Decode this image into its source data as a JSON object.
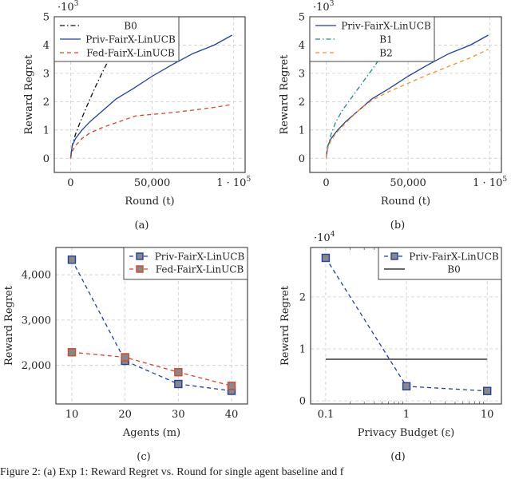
{
  "colors": {
    "blue": "#1f3fa8",
    "red": "#d9442a",
    "black": "#111111",
    "teal": "#1a8c8c",
    "orange": "#f39220",
    "marker_fill": "#888888"
  },
  "caption": "Figure 2: (a) Exp 1: Reward Regret vs. Round for single agent baseline and f",
  "chart_data": [
    {
      "id": "a",
      "type": "line",
      "sublabel": "(a)",
      "title": "",
      "xlabel": "Round (t)",
      "ylabel": "Reward Regret",
      "y_multiplier": "·10^3",
      "xlim": [
        -10000,
        107000
      ],
      "ylim": [
        -0.5,
        5
      ],
      "xticks": [
        0,
        50000,
        100000
      ],
      "xtick_labels": [
        "0",
        "50,000",
        "1 · 10^5"
      ],
      "yticks": [
        0,
        1,
        2,
        3,
        4,
        5
      ],
      "ytick_labels": [
        "0",
        "1",
        "2",
        "3",
        "4",
        "5"
      ],
      "grid": true,
      "legend_position": "top-left",
      "series": [
        {
          "name": "B0",
          "style": "dashdot",
          "color_key": "black",
          "x": [
            0,
            1000,
            3000,
            6000,
            10000,
            15000,
            20000,
            24000,
            30000
          ],
          "y": [
            0,
            0.45,
            0.85,
            1.3,
            1.85,
            2.5,
            3.1,
            3.55,
            4.2
          ]
        },
        {
          "name": "Priv-FairX-LinUCB",
          "style": "solid",
          "color_key": "blue",
          "x": [
            0,
            1000,
            3000,
            7000,
            12000,
            20000,
            28000,
            38000,
            50000,
            62000,
            75000,
            88000,
            99000
          ],
          "y": [
            0,
            0.45,
            0.7,
            1.0,
            1.3,
            1.7,
            2.1,
            2.45,
            2.9,
            3.3,
            3.7,
            4.0,
            4.35
          ]
        },
        {
          "name": "Fed-FairX-LinUCB",
          "style": "dashed",
          "color_key": "red",
          "x": [
            0,
            1000,
            3000,
            7000,
            12000,
            20000,
            30000,
            40000,
            50000,
            60000,
            75000,
            88000,
            99000
          ],
          "y": [
            0,
            0.25,
            0.45,
            0.7,
            0.9,
            1.1,
            1.3,
            1.5,
            1.55,
            1.6,
            1.7,
            1.8,
            1.9
          ]
        }
      ]
    },
    {
      "id": "b",
      "type": "line",
      "sublabel": "(b)",
      "title": "",
      "xlabel": "Round (t)",
      "ylabel": "Reward Regret",
      "y_multiplier": "·10^3",
      "xlim": [
        -10000,
        107000
      ],
      "ylim": [
        -0.5,
        5
      ],
      "xticks": [
        0,
        50000,
        100000
      ],
      "xtick_labels": [
        "0",
        "50,000",
        "1 · 10^5"
      ],
      "yticks": [
        0,
        1,
        2,
        3,
        4,
        5
      ],
      "ytick_labels": [
        "0",
        "1",
        "2",
        "3",
        "4",
        "5"
      ],
      "grid": true,
      "legend_position": "top-left",
      "series": [
        {
          "name": "Priv-FairX-LinUCB",
          "style": "solid",
          "color_key": "blue",
          "x": [
            0,
            1000,
            3000,
            7000,
            12000,
            20000,
            28000,
            38000,
            50000,
            62000,
            75000,
            88000,
            99000
          ],
          "y": [
            0,
            0.45,
            0.7,
            1.0,
            1.3,
            1.7,
            2.1,
            2.45,
            2.9,
            3.3,
            3.7,
            4.0,
            4.35
          ]
        },
        {
          "name": "B1",
          "style": "dashdot",
          "color_key": "teal",
          "x": [
            0,
            1000,
            3000,
            6000,
            10000,
            15000,
            20000,
            25000,
            30000,
            34000
          ],
          "y": [
            0,
            0.4,
            0.85,
            1.3,
            1.7,
            2.1,
            2.5,
            2.9,
            3.3,
            3.65
          ]
        },
        {
          "name": "B2",
          "style": "dashed",
          "color_key": "orange",
          "x": [
            0,
            1000,
            3000,
            7000,
            12000,
            20000,
            28000,
            38000,
            50000,
            62000,
            75000,
            88000,
            99000
          ],
          "y": [
            0,
            0.35,
            0.65,
            0.95,
            1.25,
            1.7,
            2.05,
            2.35,
            2.65,
            2.95,
            3.25,
            3.55,
            3.85
          ]
        }
      ]
    },
    {
      "id": "c",
      "type": "line",
      "sublabel": "(c)",
      "title": "",
      "xlabel": "Agents (m)",
      "ylabel": "Reward Regret",
      "xlim": [
        7,
        43
      ],
      "ylim": [
        1150,
        4600
      ],
      "xticks": [
        10,
        20,
        30,
        40
      ],
      "xtick_labels": [
        "10",
        "20",
        "30",
        "40"
      ],
      "yticks": [
        2000,
        3000,
        4000
      ],
      "ytick_labels": [
        "2,000",
        "3,000",
        "4,000"
      ],
      "grid": true,
      "legend_position": "top-right",
      "series": [
        {
          "name": "Priv-FairX-LinUCB",
          "style": "dashed",
          "marker": "square",
          "color_key": "blue",
          "x": [
            10,
            20,
            30,
            40
          ],
          "y": [
            4330,
            2100,
            1590,
            1440
          ]
        },
        {
          "name": "Fed-FairX-LinUCB",
          "style": "dashed",
          "marker": "square",
          "color_key": "red",
          "x": [
            10,
            20,
            30,
            40
          ],
          "y": [
            2290,
            2180,
            1850,
            1550
          ]
        }
      ]
    },
    {
      "id": "d",
      "type": "line",
      "sublabel": "(d)",
      "title": "",
      "xlabel": "Privacy Budget (ε)",
      "ylabel": "Reward Regret",
      "y_multiplier": "·10^4",
      "xscale": "log",
      "xlim": [
        0.065,
        15
      ],
      "ylim": [
        -0.06,
        2.95
      ],
      "xticks": [
        0.1,
        1,
        10
      ],
      "xtick_labels": [
        "0.1",
        "1",
        "10"
      ],
      "yticks": [
        0,
        1,
        2
      ],
      "ytick_labels": [
        "0",
        "1",
        "2"
      ],
      "grid": true,
      "legend_position": "top-right",
      "series": [
        {
          "name": "Priv-FairX-LinUCB",
          "style": "dashed",
          "marker": "square",
          "color_key": "blue",
          "x": [
            0.1,
            1,
            10
          ],
          "y": [
            2.75,
            0.28,
            0.19
          ]
        },
        {
          "name": "B0",
          "style": "solid",
          "color_key": "black",
          "x": [
            0.1,
            10
          ],
          "y": [
            0.8,
            0.8
          ]
        }
      ]
    }
  ]
}
